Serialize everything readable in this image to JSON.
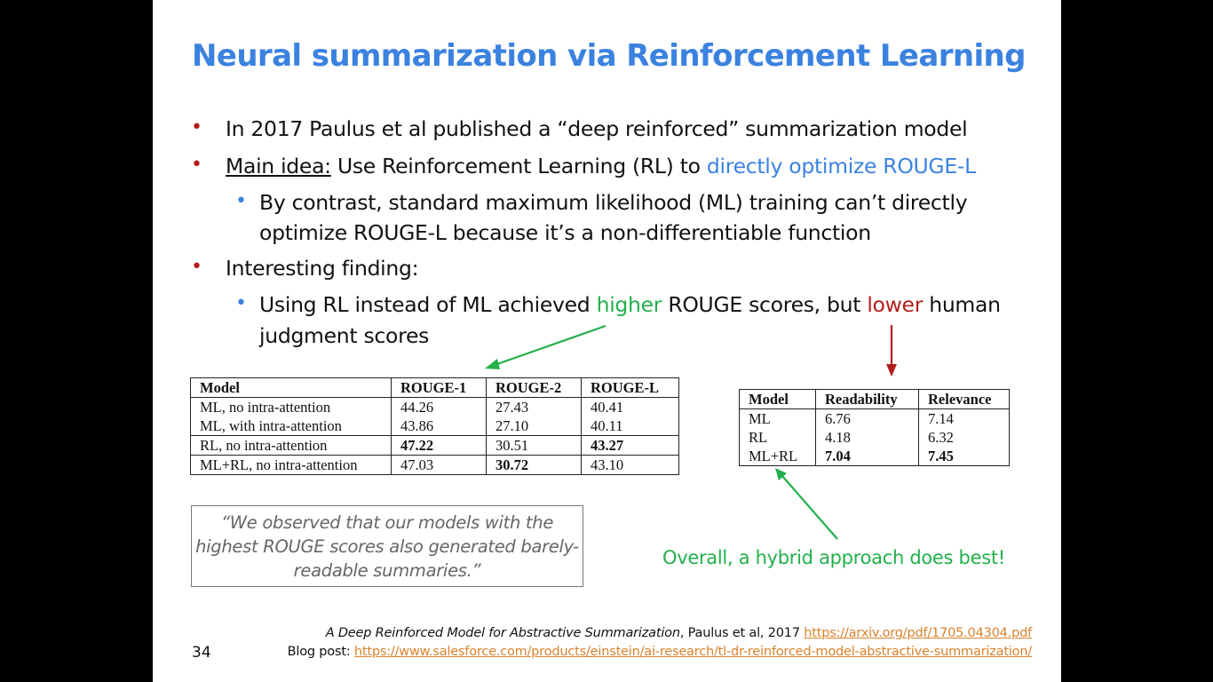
{
  "title": "Neural summarization via Reinforcement Learning",
  "bullets": {
    "b1": "In 2017 Paulus et al published a “deep reinforced” summarization model",
    "b2_underlined": "Main idea:",
    "b2_text": " Use Reinforcement Learning (RL) to ",
    "b2_highlight": "directly optimize ROUGE-L",
    "b2_sub_line1": "By contrast, standard maximum likelihood (ML) training can’t directly",
    "b2_sub_line2": "optimize ROUGE-L because it’s a non-differentiable function",
    "b3": "Interesting finding:",
    "b3_sub_pre": "Using RL instead of ML achieved ",
    "b3_sub_higher": "higher",
    "b3_sub_mid": " ROUGE scores, but ",
    "b3_sub_lower": "lower",
    "b3_sub_post": " human",
    "b3_sub_line2": "judgment scores"
  },
  "rouge_table": {
    "headers": [
      "Model",
      "ROUGE-1",
      "ROUGE-2",
      "ROUGE-L"
    ],
    "rows": [
      [
        "ML, no intra-attention",
        "44.26",
        "27.43",
        "40.41"
      ],
      [
        "ML, with intra-attention",
        "43.86",
        "27.10",
        "40.11"
      ],
      [
        "RL, no intra-attention",
        "47.22",
        "30.51",
        "43.27"
      ],
      [
        "ML+RL, no intra-attention",
        "47.03",
        "30.72",
        "43.10"
      ]
    ]
  },
  "human_table": {
    "headers": [
      "Model",
      "Readability",
      "Relevance"
    ],
    "rows": [
      [
        "ML",
        "6.76",
        "7.14"
      ],
      [
        "RL",
        "4.18",
        "6.32"
      ],
      [
        "ML+RL",
        "7.04",
        "7.45"
      ]
    ]
  },
  "quote": {
    "line1": "“We observed that our models with the",
    "line2": "highest ROUGE scores also generated barely-",
    "line3": "readable summaries.”"
  },
  "overall_note": "Overall, a hybrid approach does best!",
  "page_number": "34",
  "references": {
    "paper_title": "A Deep Reinforced Model for Abstractive Summarization",
    "paper_authors": ", Paulus et al, 2017 ",
    "paper_link": "https://arxiv.org/pdf/1705.04304.pdf",
    "blog_label": "Blog post: ",
    "blog_link": "https://www.salesforce.com/products/einstein/ai-research/tl-dr-reinforced-model-abstractive-summarization/"
  },
  "colors": {
    "title": "#3b82e0",
    "red_bullet": "#b51d1d",
    "green": "#22b04b",
    "link": "#d9822b"
  }
}
